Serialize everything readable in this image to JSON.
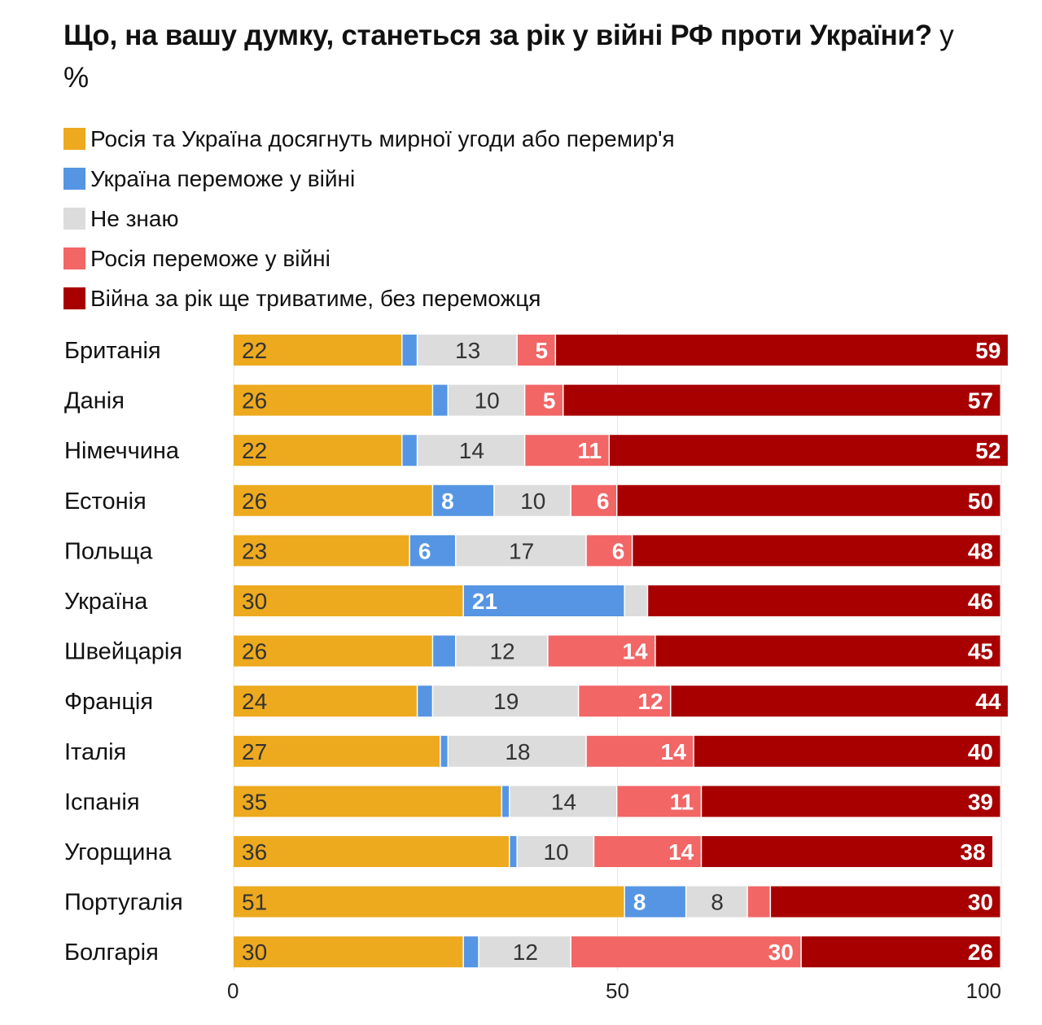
{
  "title": {
    "main": "Що, на вашу думку, станеться за рік у війні РФ проти України?",
    "unit": " у %"
  },
  "chart_data": {
    "type": "bar",
    "orientation": "horizontal",
    "stacked": true,
    "title": "Що, на вашу думку, станеться за рік у війні РФ проти України? у %",
    "xlabel": "",
    "ylabel": "",
    "xlim": [
      0,
      100
    ],
    "x_ticks": [
      0,
      50,
      100
    ],
    "grid": true,
    "legend_position": "top",
    "categories": [
      "Британія",
      "Данія",
      "Німеччина",
      "Естонія",
      "Польща",
      "Україна",
      "Швейцарія",
      "Франція",
      "Італія",
      "Іспанія",
      "Угорщина",
      "Португалія",
      "Болгарія"
    ],
    "series": [
      {
        "name": "Росія та Україна досягнуть мирної угоди або перемир'я",
        "color": "#EDAA1F",
        "label_color": "#333333",
        "values": [
          22,
          26,
          22,
          26,
          23,
          30,
          26,
          24,
          27,
          35,
          36,
          51,
          30
        ],
        "labels": [
          "22",
          "26",
          "22",
          "26",
          "23",
          "30",
          "26",
          "24",
          "27",
          "35",
          "36",
          "51",
          "30"
        ],
        "label_align": "start"
      },
      {
        "name": "Україна переможе у війні",
        "color": "#5595E3",
        "label_color": "#ffffff",
        "values": [
          2,
          2,
          2,
          8,
          6,
          21,
          3,
          2,
          1,
          1,
          1,
          8,
          2
        ],
        "labels": [
          "",
          "",
          "",
          "8",
          "6",
          "21",
          "",
          "",
          "",
          "",
          "",
          "8",
          ""
        ],
        "label_align": "start"
      },
      {
        "name": "Не знаю",
        "color": "#DCDCDC",
        "label_color": "#333333",
        "values": [
          13,
          10,
          14,
          10,
          17,
          3,
          12,
          19,
          18,
          14,
          10,
          8,
          12
        ],
        "labels": [
          "13",
          "10",
          "14",
          "10",
          "17",
          "",
          "12",
          "19",
          "18",
          "14",
          "10",
          "8",
          "12"
        ],
        "label_align": "middle"
      },
      {
        "name": "Росія переможе у війні",
        "color": "#F26666",
        "label_color": "#ffffff",
        "values": [
          5,
          5,
          11,
          6,
          6,
          0,
          14,
          12,
          14,
          11,
          14,
          3,
          30
        ],
        "labels": [
          "5",
          "5",
          "11",
          "6",
          "6",
          "",
          "14",
          "12",
          "14",
          "11",
          "14",
          "",
          "30"
        ],
        "label_align": "end"
      },
      {
        "name": "Війна за рік ще триватиме, без переможця",
        "color": "#A80000",
        "label_color": "#ffffff",
        "values": [
          59,
          57,
          52,
          50,
          48,
          46,
          45,
          44,
          40,
          39,
          38,
          30,
          26
        ],
        "labels": [
          "59",
          "57",
          "52",
          "50",
          "48",
          "46",
          "45",
          "44",
          "40",
          "39",
          "38",
          "30",
          "26"
        ],
        "label_align": "end"
      }
    ]
  }
}
